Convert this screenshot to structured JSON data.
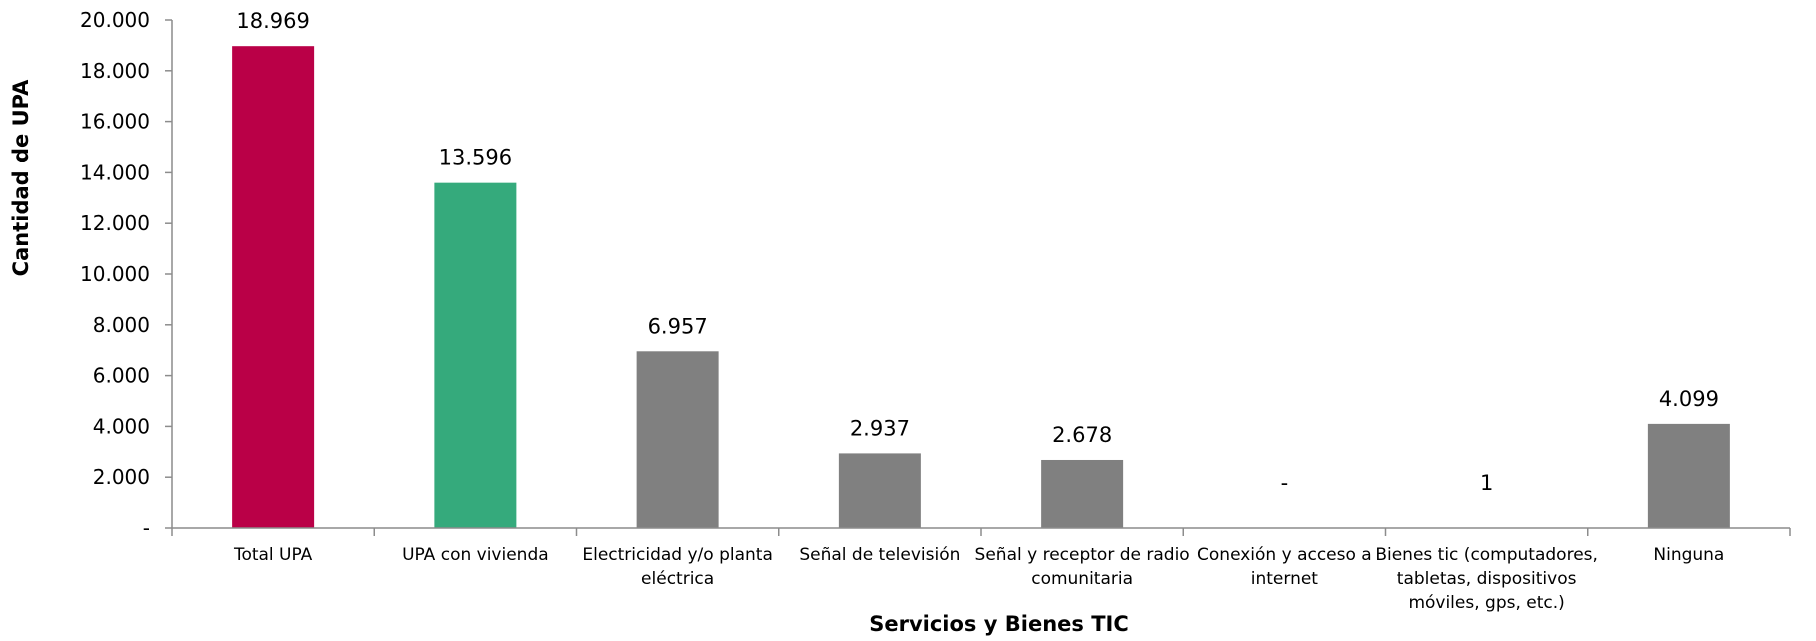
{
  "chart_data": {
    "type": "bar",
    "title": "",
    "xlabel": "Servicios y Bienes TIC",
    "ylabel": "Cantidad de UPA",
    "ylim": [
      0,
      20000
    ],
    "grid": false,
    "yticks": [
      0,
      2000,
      4000,
      6000,
      8000,
      10000,
      12000,
      14000,
      16000,
      18000,
      20000
    ],
    "ytick_labels": [
      "-",
      "2.000",
      "4.000",
      "6.000",
      "8.000",
      "10.000",
      "12.000",
      "14.000",
      "16.000",
      "18.000",
      "20.000"
    ],
    "categories": [
      "Total UPA",
      "UPA con vivienda",
      "Electricidad y/o planta eléctrica",
      "Señal de televisión",
      "Señal y receptor de radio comunitaria",
      "Conexión y acceso a internet",
      "Bienes tic (computadores, tabletas, dispositivos móviles, gps, etc.)",
      "Ninguna"
    ],
    "category_label_lines": [
      [
        "Total UPA"
      ],
      [
        "UPA con vivienda"
      ],
      [
        "Electricidad y/o planta",
        "eléctrica"
      ],
      [
        "Señal de televisión"
      ],
      [
        "Señal y receptor de radio",
        "comunitaria"
      ],
      [
        "Conexión y acceso a",
        "internet"
      ],
      [
        "Bienes tic (computadores,",
        "tabletas, dispositivos",
        "móviles, gps, etc.)"
      ],
      [
        "Ninguna"
      ]
    ],
    "values": [
      18969,
      13596,
      6957,
      2937,
      2678,
      0,
      1,
      4099
    ],
    "data_labels": [
      "18.969",
      "13.596",
      "6.957",
      "2.937",
      "2.678",
      "-",
      "1",
      "4.099"
    ],
    "colors": [
      "#BA0047",
      "#35AA7C",
      "#808080",
      "#808080",
      "#808080",
      "#808080",
      "#808080",
      "#808080"
    ],
    "axis_color": "#8C8C8C"
  }
}
